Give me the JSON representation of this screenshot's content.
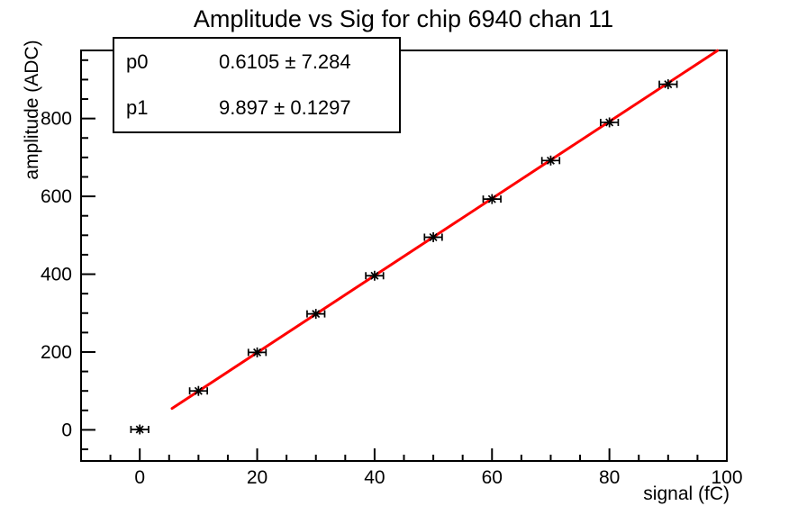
{
  "title": "Amplitude vs Sig for chip 6940 chan 11",
  "stats_box": {
    "rows": [
      {
        "label": "p0",
        "value": "0.6105 ± 7.284"
      },
      {
        "label": "p1",
        "value": "9.897 ± 0.1297"
      }
    ]
  },
  "chart_data": {
    "type": "scatter",
    "title": "Amplitude vs Sig for chip 6940 chan 11",
    "xlabel": "signal (fC)",
    "ylabel": "amplitude (ADC)",
    "xlim": [
      -10,
      100
    ],
    "ylim": [
      -80,
      975
    ],
    "x_major_ticks": [
      0,
      20,
      40,
      60,
      80,
      100
    ],
    "x_minor_step": 5,
    "y_major_ticks": [
      0,
      200,
      400,
      600,
      800
    ],
    "y_minor_step": 50,
    "grid": false,
    "legend_position": "none",
    "marker_style": "asterisk-with-x-error-bars",
    "points": {
      "x": [
        0,
        10,
        20,
        30,
        40,
        50,
        60,
        70,
        80,
        90
      ],
      "y": [
        1,
        100,
        199,
        298,
        396,
        495,
        593,
        692,
        790,
        888
      ],
      "xerr": 1.5
    },
    "fit": {
      "type": "linear",
      "p0": 0.6105,
      "p0_err": 7.284,
      "p1": 9.897,
      "p1_err": 0.1297,
      "x_start": 5.5,
      "x_end": 98.4
    },
    "colors": {
      "fit_line": "#ff0000",
      "marker": "#000000",
      "axis": "#000000",
      "background": "#ffffff"
    }
  }
}
